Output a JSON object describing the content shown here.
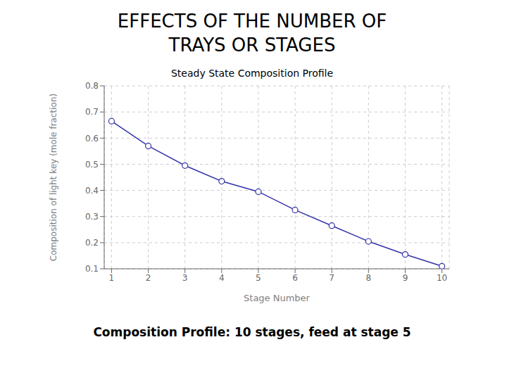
{
  "chart_data": {
    "type": "line",
    "title": "EFFECTS OF THE NUMBER OF\nTRAYS OR STAGES",
    "subtitle": "Composition Profile: 10 stages, feed at stage 5",
    "annotations": [
      "Steady State Composition Profile"
    ],
    "xlabel": "Stage Number",
    "ylabel": "Composition of light key (mole fraction)",
    "x": [
      1,
      2,
      3,
      4,
      5,
      6,
      7,
      8,
      9,
      10
    ],
    "values": [
      0.665,
      0.57,
      0.495,
      0.435,
      0.395,
      0.325,
      0.265,
      0.205,
      0.155,
      0.11
    ],
    "color": "#3333aa",
    "marker": "circle",
    "xlim": [
      0.8,
      10.2
    ],
    "ylim": [
      0.1,
      0.8
    ],
    "xticks": [
      1,
      2,
      3,
      4,
      5,
      6,
      7,
      8,
      9,
      10
    ],
    "yticks": [
      0.1,
      0.2,
      0.3,
      0.4,
      0.5,
      0.6,
      0.7,
      0.8
    ],
    "grid": true
  }
}
